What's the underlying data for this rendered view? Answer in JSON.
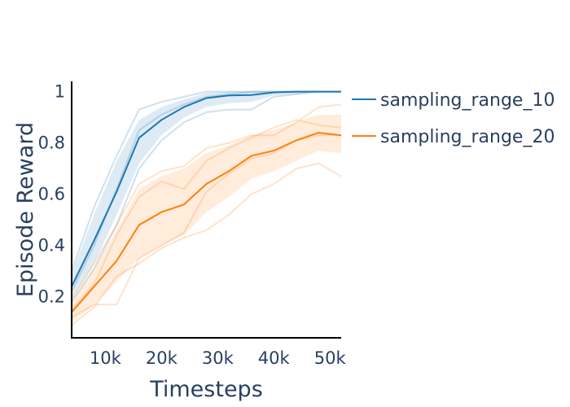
{
  "chart_data": {
    "type": "line",
    "title": "",
    "xlabel": "Timesteps",
    "ylabel": "Episode Reward",
    "xlim": [
      4000,
      52000
    ],
    "ylim": [
      0.04,
      1.04
    ],
    "x_ticks": [
      10000,
      20000,
      30000,
      40000,
      50000
    ],
    "x_tick_labels": [
      "10k",
      "20k",
      "30k",
      "40k",
      "50k"
    ],
    "y_ticks": [
      0.2,
      0.4,
      0.6,
      0.8,
      1.0
    ],
    "y_tick_labels": [
      "0.2",
      "0.4",
      "0.6",
      "0.8",
      "1"
    ],
    "grid": false,
    "legend_position": "right",
    "x": [
      4000,
      8000,
      12000,
      16000,
      20000,
      24000,
      28000,
      32000,
      36000,
      40000,
      44000,
      48000,
      52000
    ],
    "series": [
      {
        "name": "sampling_range_10",
        "color": "#1f77b4",
        "mean": [
          0.24,
          0.42,
          0.61,
          0.82,
          0.89,
          0.94,
          0.975,
          0.985,
          0.987,
          0.997,
          1.0,
          1.0,
          1.0
        ],
        "upper": [
          0.29,
          0.52,
          0.73,
          0.89,
          0.94,
          0.97,
          0.995,
          1.0,
          1.0,
          1.0,
          1.0,
          1.0,
          1.0
        ],
        "lower": [
          0.19,
          0.33,
          0.52,
          0.72,
          0.83,
          0.9,
          0.94,
          0.955,
          0.96,
          0.985,
          0.99,
          1.0,
          1.0
        ],
        "runs": [
          [
            0.3,
            0.55,
            0.75,
            0.93,
            0.96,
            0.98,
            1.0,
            1.0,
            1.0,
            1.0,
            1.0,
            1.0,
            1.0
          ],
          [
            0.22,
            0.4,
            0.62,
            0.85,
            0.91,
            0.95,
            0.98,
            0.99,
            1.0,
            1.0,
            1.0,
            1.0,
            1.0
          ],
          [
            0.18,
            0.31,
            0.48,
            0.7,
            0.81,
            0.88,
            0.92,
            0.93,
            0.93,
            0.98,
            0.99,
            1.0,
            1.0
          ]
        ]
      },
      {
        "name": "sampling_range_20",
        "color": "#ff7f0e",
        "mean": [
          0.14,
          0.24,
          0.34,
          0.48,
          0.53,
          0.56,
          0.64,
          0.69,
          0.75,
          0.77,
          0.81,
          0.84,
          0.83
        ],
        "upper": [
          0.18,
          0.31,
          0.46,
          0.62,
          0.67,
          0.7,
          0.76,
          0.79,
          0.83,
          0.85,
          0.88,
          0.91,
          0.91
        ],
        "lower": [
          0.1,
          0.17,
          0.26,
          0.35,
          0.4,
          0.44,
          0.53,
          0.59,
          0.66,
          0.69,
          0.73,
          0.77,
          0.76
        ],
        "runs": [
          [
            0.19,
            0.33,
            0.48,
            0.64,
            0.69,
            0.71,
            0.78,
            0.8,
            0.83,
            0.83,
            0.88,
            0.94,
            0.95
          ],
          [
            0.15,
            0.25,
            0.44,
            0.59,
            0.65,
            0.62,
            0.73,
            0.78,
            0.82,
            0.86,
            0.89,
            0.87,
            0.86
          ],
          [
            0.12,
            0.17,
            0.17,
            0.35,
            0.4,
            0.45,
            0.61,
            0.68,
            0.74,
            0.76,
            0.81,
            0.83,
            0.83
          ],
          [
            0.09,
            0.16,
            0.28,
            0.33,
            0.39,
            0.43,
            0.46,
            0.52,
            0.6,
            0.64,
            0.7,
            0.72,
            0.67
          ]
        ]
      }
    ]
  }
}
